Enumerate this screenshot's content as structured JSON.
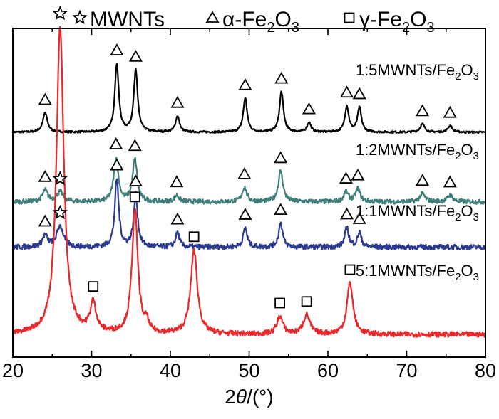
{
  "chart_data": {
    "type": "line",
    "xlabel_prefix": "2",
    "xlabel_var": "θ",
    "xlabel_suffix": "/(°)",
    "ylabel": "",
    "xlim": [
      20,
      80
    ],
    "xticks": [
      20,
      30,
      40,
      50,
      60,
      70,
      80
    ],
    "yticks_shown": false,
    "grid": false,
    "legend": {
      "placement": "top",
      "entries": [
        {
          "marker": "star",
          "text": "MWNTs",
          "sub": "",
          "post": ""
        },
        {
          "marker": "triangle",
          "text": "α-Fe",
          "sub": "2",
          "post": "O",
          "sub2": "3"
        },
        {
          "marker": "square",
          "text": "γ-Fe",
          "sub": "2",
          "post": "O",
          "sub2": "3"
        }
      ]
    },
    "series": [
      {
        "name": "1:5MWNTs/Fe2O3",
        "label_main": "1:5MWNTs/Fe",
        "label_sub": "2",
        "label_post": "O",
        "label_sub2": "3",
        "color": "#000000",
        "baseline": 6.55,
        "noise": 0.03,
        "peaks": [
          [
            24.1,
            0.6,
            0.35
          ],
          [
            33.2,
            2.1,
            0.3
          ],
          [
            35.6,
            1.9,
            0.3
          ],
          [
            40.9,
            0.5,
            0.3
          ],
          [
            49.5,
            1.05,
            0.3
          ],
          [
            54.1,
            1.25,
            0.3
          ],
          [
            57.6,
            0.3,
            0.3
          ],
          [
            62.4,
            0.8,
            0.3
          ],
          [
            64.0,
            0.75,
            0.3
          ],
          [
            72.0,
            0.25,
            0.35
          ],
          [
            75.5,
            0.2,
            0.35
          ]
        ],
        "markers": [
          {
            "type": "triangle",
            "x": 24.1
          },
          {
            "type": "triangle",
            "x": 33.2
          },
          {
            "type": "triangle",
            "x": 35.6
          },
          {
            "type": "triangle",
            "x": 40.9
          },
          {
            "type": "triangle",
            "x": 49.5
          },
          {
            "type": "triangle",
            "x": 54.1
          },
          {
            "type": "triangle",
            "x": 57.6
          },
          {
            "type": "triangle",
            "x": 62.4
          },
          {
            "type": "triangle",
            "x": 64.0
          },
          {
            "type": "triangle",
            "x": 72.0
          },
          {
            "type": "triangle",
            "x": 75.5
          }
        ]
      },
      {
        "name": "1:2MWNTs/Fe2O3",
        "label_main": "1:2MWNTs/Fe",
        "label_sub": "2",
        "label_post": "O",
        "label_sub2": "3",
        "color": "#3f7f7a",
        "baseline": 4.4,
        "noise": 0.07,
        "peaks": [
          [
            24.1,
            0.35,
            0.4
          ],
          [
            26.0,
            0.3,
            0.5
          ],
          [
            33.1,
            1.35,
            0.35
          ],
          [
            35.5,
            1.3,
            0.35
          ],
          [
            40.8,
            0.2,
            0.35
          ],
          [
            49.4,
            0.45,
            0.35
          ],
          [
            54.0,
            0.95,
            0.35
          ],
          [
            62.3,
            0.3,
            0.35
          ],
          [
            63.8,
            0.4,
            0.35
          ],
          [
            72.0,
            0.25,
            0.4
          ],
          [
            75.5,
            0.2,
            0.4
          ]
        ],
        "markers": [
          {
            "type": "triangle",
            "x": 24.1
          },
          {
            "type": "star",
            "x": 26.0
          },
          {
            "type": "triangle",
            "x": 33.1
          },
          {
            "type": "triangle",
            "x": 35.5
          },
          {
            "type": "triangle",
            "x": 40.8
          },
          {
            "type": "triangle",
            "x": 49.4
          },
          {
            "type": "triangle",
            "x": 54.0
          },
          {
            "type": "triangle",
            "x": 62.3
          },
          {
            "type": "triangle",
            "x": 63.8
          },
          {
            "type": "triangle",
            "x": 72.0
          },
          {
            "type": "triangle",
            "x": 75.5
          }
        ]
      },
      {
        "name": "1:1MWNTs/Fe2O3",
        "label_main": "1:1MWNTs/Fe",
        "label_sub": "2",
        "label_post": "O",
        "label_sub2": "3",
        "color": "#2b3a8f",
        "baseline": 3.0,
        "noise": 0.08,
        "peaks": [
          [
            24.1,
            0.35,
            0.4
          ],
          [
            26.0,
            0.65,
            0.5
          ],
          [
            33.2,
            2.1,
            0.3
          ],
          [
            35.6,
            1.6,
            0.3
          ],
          [
            40.9,
            0.45,
            0.3
          ],
          [
            49.5,
            0.6,
            0.3
          ],
          [
            54.0,
            0.75,
            0.3
          ],
          [
            62.4,
            0.6,
            0.3
          ],
          [
            64.0,
            0.45,
            0.3
          ]
        ],
        "markers": [
          {
            "type": "triangle",
            "x": 24.1
          },
          {
            "type": "star",
            "x": 26.0
          },
          {
            "type": "triangle",
            "x": 33.2
          },
          {
            "type": "triangle",
            "x": 35.6
          },
          {
            "type": "triangle",
            "x": 40.9
          },
          {
            "type": "triangle",
            "x": 49.5
          },
          {
            "type": "triangle",
            "x": 54.0
          },
          {
            "type": "triangle",
            "x": 62.4
          },
          {
            "type": "triangle",
            "x": 64.0
          }
        ]
      },
      {
        "name": "5:1MWNTs/Fe2O3",
        "label_main": "5:1MWNTs/Fe",
        "label_sub": "2",
        "label_post": "O",
        "label_sub2": "3",
        "color": "#e8282b",
        "baseline": 0.3,
        "noise": 0.08,
        "peaks": [
          [
            26.0,
            9.5,
            0.55
          ],
          [
            30.2,
            0.9,
            0.45
          ],
          [
            35.5,
            3.8,
            0.45
          ],
          [
            37.0,
            0.3,
            0.25
          ],
          [
            43.0,
            2.6,
            0.5
          ],
          [
            53.9,
            0.55,
            0.45
          ],
          [
            57.3,
            0.6,
            0.5
          ],
          [
            62.8,
            1.6,
            0.45
          ]
        ],
        "markers": [
          {
            "type": "star",
            "x": 26.0
          },
          {
            "type": "square",
            "x": 30.2
          },
          {
            "type": "square",
            "x": 35.5
          },
          {
            "type": "square",
            "x": 43.0
          },
          {
            "type": "square",
            "x": 53.9
          },
          {
            "type": "square",
            "x": 57.3
          },
          {
            "type": "square",
            "x": 62.8
          }
        ]
      }
    ]
  }
}
